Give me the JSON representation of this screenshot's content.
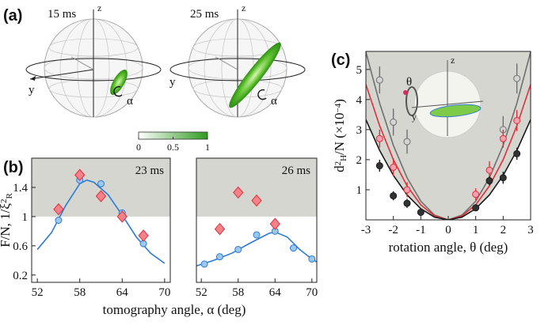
{
  "panel_labels": [
    "(a)",
    "(b)",
    "(c)"
  ],
  "spheres": [
    {
      "time": "15 ms",
      "z": "z",
      "y": "y",
      "alpha": "α"
    },
    {
      "time": "25 ms",
      "z": "z",
      "y": "y",
      "alpha": "α"
    }
  ],
  "inset": {
    "theta": "θ",
    "z": "z",
    "y": "y"
  },
  "chart_data": [
    {
      "type": "colorbar",
      "xlim": [
        0,
        1
      ],
      "xticks": [
        0,
        0.5,
        1
      ],
      "colors": [
        "#ffffff",
        "#2e9c1e"
      ]
    },
    {
      "type": "scatter",
      "annotation": "23 ms",
      "xlabel": "tomography angle, α (deg)",
      "ylabel": [
        {
          "text": "F/N, 1/ξ"
        },
        {
          "text": "2",
          "pos": "sup"
        },
        {
          "text": "R",
          "pos": "sub"
        }
      ],
      "xlim": [
        51.2,
        70.8
      ],
      "ylim": [
        0.1,
        1.8
      ],
      "xticks": [
        52,
        58,
        64,
        70
      ],
      "yticks": [
        0.2,
        0.6,
        1,
        1.4
      ],
      "shade_above": 1,
      "series": [
        {
          "style": "line",
          "color": "#2b7bd6",
          "x": [
            52,
            54,
            56,
            58,
            59,
            60,
            62,
            64,
            66,
            68,
            70
          ],
          "values": [
            0.55,
            0.78,
            1.15,
            1.45,
            1.5,
            1.47,
            1.3,
            1.02,
            0.72,
            0.5,
            0.36
          ]
        },
        {
          "style": "circle",
          "color": "#2b7bd6",
          "face": "#9cc8f0",
          "x": [
            55,
            58,
            61,
            64,
            67
          ],
          "values": [
            0.95,
            1.5,
            1.45,
            1.05,
            0.63
          ]
        },
        {
          "style": "diamond",
          "color": "#e0303a",
          "face": "#f4828a",
          "x": [
            55,
            58,
            61,
            64,
            67
          ],
          "values": [
            1.1,
            1.57,
            1.28,
            1.0,
            0.74
          ]
        }
      ]
    },
    {
      "type": "scatter",
      "annotation": "26 ms",
      "xlim": [
        51.2,
        70.8
      ],
      "ylim": [
        0.1,
        1.8
      ],
      "xticks": [
        52,
        58,
        64,
        70
      ],
      "shade_above": 1,
      "series": [
        {
          "style": "line",
          "color": "#2b7bd6",
          "x": [
            51,
            54,
            57,
            60,
            63,
            64,
            66,
            68,
            70,
            71
          ],
          "values": [
            0.32,
            0.4,
            0.5,
            0.64,
            0.77,
            0.79,
            0.72,
            0.55,
            0.42,
            0.37
          ]
        },
        {
          "style": "circle",
          "color": "#2b7bd6",
          "face": "#9cc8f0",
          "x": [
            52.5,
            55,
            58,
            61,
            64,
            67,
            70
          ],
          "values": [
            0.35,
            0.45,
            0.55,
            0.75,
            0.8,
            0.57,
            0.42
          ]
        },
        {
          "style": "diamond",
          "color": "#e0303a",
          "face": "#f4828a",
          "x": [
            55,
            58,
            61,
            64
          ],
          "values": [
            0.83,
            1.33,
            1.22,
            0.9
          ]
        }
      ]
    },
    {
      "type": "scatter",
      "xlabel": "rotation angle, θ (deg)",
      "ylabel": [
        {
          "text": "d"
        },
        {
          "text": "2",
          "pos": "sup"
        },
        {
          "text": "H",
          "pos": "sub"
        },
        {
          "text": "/N (×10"
        },
        {
          "text": "−4",
          "pos": "sup"
        },
        {
          "text": ")"
        }
      ],
      "xlim": [
        -3,
        3
      ],
      "ylim": [
        0,
        5.6
      ],
      "xticks": [
        -3,
        -2,
        -1,
        0,
        1,
        2,
        3
      ],
      "yticks": [
        1,
        2,
        3,
        4,
        5
      ],
      "shade_above_series": 2,
      "series": [
        {
          "style": "line",
          "color": "#6f6f6f",
          "x": [
            -3,
            -2.5,
            -2,
            -1.5,
            -1,
            -0.5,
            0,
            0.5,
            1,
            1.5,
            2,
            2.5,
            3
          ],
          "values": [
            5.58,
            3.88,
            2.48,
            1.4,
            0.62,
            0.16,
            0,
            0.16,
            0.62,
            1.4,
            2.48,
            3.88,
            5.58
          ]
        },
        {
          "style": "line",
          "color": "#e0303a",
          "x": [
            -3,
            -2.5,
            -2,
            -1.5,
            -1,
            -0.5,
            0,
            0.5,
            1,
            1.5,
            2,
            2.5,
            3
          ],
          "values": [
            4.5,
            3.13,
            2,
            1.13,
            0.5,
            0.13,
            0,
            0.13,
            0.5,
            1.13,
            2,
            3.13,
            4.5
          ]
        },
        {
          "style": "line",
          "color": "#1a1a1a",
          "x": [
            -3,
            -2.5,
            -2,
            -1.5,
            -1,
            -0.5,
            0,
            0.5,
            1,
            1.5,
            2,
            2.5,
            3
          ],
          "values": [
            3.33,
            2.31,
            1.48,
            0.83,
            0.37,
            0.09,
            0,
            0.09,
            0.37,
            0.83,
            1.48,
            2.31,
            3.33
          ]
        },
        {
          "style": "circle",
          "color": "#6f6f6f",
          "face": "#d4d4d4",
          "x": [
            -2.5,
            -2,
            -1.5,
            2,
            2.5
          ],
          "values": [
            4.65,
            3.25,
            2.6,
            3.0,
            4.7
          ],
          "errors": [
            0.45,
            0.45,
            0.4,
            0.45,
            0.5
          ]
        },
        {
          "style": "circle",
          "color": "#e0303a",
          "face": "#f4a0ae",
          "x": [
            -2.5,
            -2,
            -1.5,
            1,
            1.5,
            2,
            2.5
          ],
          "values": [
            2.7,
            1.75,
            1.0,
            0.85,
            1.65,
            2.7,
            3.3
          ],
          "errors": [
            0.3,
            0.3,
            0.25,
            0.2,
            0.3,
            0.3,
            0.35
          ]
        },
        {
          "style": "circle",
          "color": "#1a1a1a",
          "face": "#333333",
          "x": [
            -2.5,
            -2,
            -1.5,
            -1,
            1,
            1.5,
            2,
            2.5
          ],
          "values": [
            1.8,
            0.8,
            0.55,
            0.25,
            0.4,
            1.3,
            1.4,
            2.2
          ],
          "errors": [
            0.2,
            0.15,
            0.15,
            0.1,
            0.1,
            0.15,
            0.2,
            0.2
          ]
        }
      ]
    }
  ]
}
